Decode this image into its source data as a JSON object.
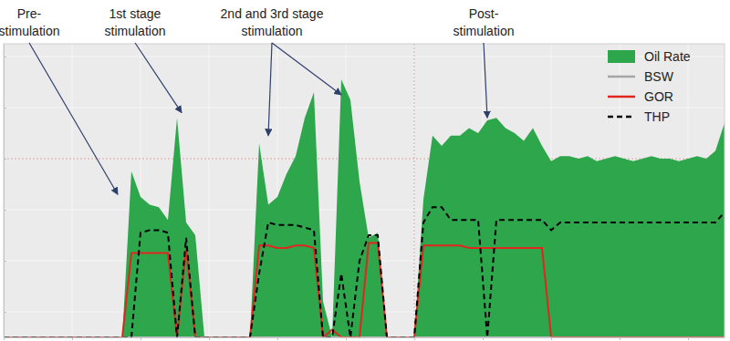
{
  "chart_data": {
    "type": "line",
    "x": [
      0,
      2,
      4,
      6,
      8,
      10,
      12,
      14,
      16,
      18,
      20,
      22,
      24,
      26,
      28,
      30,
      32,
      34,
      36,
      38,
      40,
      42,
      44,
      46,
      48,
      50,
      52,
      54,
      56,
      58,
      60,
      62,
      64,
      66,
      68,
      70,
      72,
      74,
      76,
      78,
      80,
      82,
      84,
      86,
      88,
      90,
      92,
      94,
      96,
      98,
      100,
      102,
      104,
      106,
      108,
      110,
      112,
      114,
      116,
      118,
      120,
      122,
      124,
      126,
      128,
      130,
      132,
      134,
      136,
      138,
      140,
      142,
      144,
      146,
      148,
      150,
      152,
      154,
      156,
      158
    ],
    "xlim": [
      0,
      158
    ],
    "xticks": [
      0,
      15,
      30,
      45,
      60,
      75,
      90,
      105,
      120,
      135,
      150
    ],
    "ylim": [
      0,
      115
    ],
    "yticks": [
      10,
      30,
      50,
      70,
      90,
      110
    ],
    "grid": true,
    "tick_labels": false,
    "legend": "upper right",
    "reference_lines": {
      "x": [
        90
      ],
      "y": [
        70
      ]
    },
    "series": [
      {
        "name": "Oil Rate",
        "type": "area",
        "color": "#2ea64b",
        "values": [
          0,
          0,
          0,
          0,
          0,
          0,
          0,
          0,
          0,
          0,
          0,
          0,
          0,
          0,
          65,
          55,
          52,
          51,
          46,
          86,
          45,
          40,
          0,
          0,
          0,
          0,
          0,
          0,
          76,
          52,
          55,
          64,
          71,
          86,
          96,
          14,
          0,
          101,
          93,
          61,
          39,
          41,
          0,
          0,
          0,
          0,
          54,
          79,
          75,
          79,
          79,
          82,
          80,
          85,
          86,
          82,
          80,
          77,
          82,
          75,
          69,
          71,
          71,
          70,
          71,
          69,
          70,
          71,
          70,
          69,
          70,
          71,
          70,
          70,
          69,
          70,
          71,
          70,
          73,
          84
        ]
      },
      {
        "name": "BSW",
        "type": "line",
        "color": "#a6a6a6",
        "values": [
          0,
          0,
          0,
          0,
          0,
          0,
          0,
          0,
          0,
          0,
          0,
          0,
          0,
          0,
          0,
          0,
          0,
          0,
          0,
          0,
          0,
          0,
          0,
          0,
          0,
          0,
          0,
          0,
          0,
          0,
          0,
          0,
          0,
          0,
          0,
          0,
          0,
          0,
          0,
          0,
          0,
          0,
          0,
          0,
          0,
          0,
          0,
          0,
          0,
          0,
          0,
          0,
          0,
          0,
          0,
          0,
          0,
          0,
          0,
          0,
          0,
          0,
          0,
          0,
          0,
          0,
          0,
          0,
          0,
          0,
          0,
          0,
          0,
          0,
          0,
          0,
          0,
          0,
          0,
          0
        ]
      },
      {
        "name": "GOR",
        "type": "line",
        "color": "#e0261f",
        "values": [
          0,
          0,
          0,
          0,
          0,
          0,
          0,
          0,
          0,
          0,
          0,
          0,
          0,
          0,
          33,
          33,
          33,
          33,
          33,
          0,
          35,
          0,
          0,
          0,
          0,
          0,
          0,
          0,
          36,
          36,
          35,
          35,
          36,
          36,
          35,
          0,
          3,
          0,
          0,
          0,
          37,
          37,
          0,
          0,
          0,
          0,
          36,
          36,
          36,
          36,
          36,
          35,
          35,
          35,
          35,
          35,
          35,
          35,
          35,
          35,
          0,
          0,
          0,
          0,
          0,
          0,
          0,
          0,
          0,
          0,
          0,
          0,
          0,
          0,
          0,
          0,
          0,
          0,
          0,
          0
        ]
      },
      {
        "name": "THP",
        "type": "line",
        "color": "#000000",
        "line_style": "dashed",
        "values": [
          0,
          0,
          0,
          0,
          0,
          0,
          0,
          0,
          0,
          0,
          0,
          0,
          0,
          0,
          0,
          41,
          42,
          42,
          41,
          0,
          39,
          0,
          0,
          0,
          0,
          0,
          0,
          0,
          25,
          45,
          44,
          44,
          44,
          43,
          42,
          0,
          0,
          25,
          0,
          30,
          40,
          40,
          0,
          0,
          0,
          0,
          45,
          51,
          51,
          46,
          46,
          46,
          46,
          0,
          46,
          46,
          46,
          46,
          46,
          46,
          42,
          45,
          45,
          45,
          45,
          45,
          45,
          45,
          45,
          45,
          45,
          45,
          45,
          45,
          45,
          45,
          45,
          45,
          45,
          49
        ]
      }
    ],
    "annotations": [
      {
        "text": [
          "Pre-",
          "stimulation"
        ],
        "points": [
          [
            25,
            56
          ]
        ]
      },
      {
        "text": [
          "1st stage",
          "stimulation"
        ],
        "points": [
          [
            39,
            88
          ]
        ]
      },
      {
        "text": [
          "2nd and 3rd stage",
          "stimulation"
        ],
        "points": [
          [
            58,
            79
          ],
          [
            74,
            95
          ]
        ]
      },
      {
        "text": [
          "Post-",
          "stimulation"
        ],
        "points": [
          [
            106,
            86
          ]
        ]
      }
    ]
  }
}
